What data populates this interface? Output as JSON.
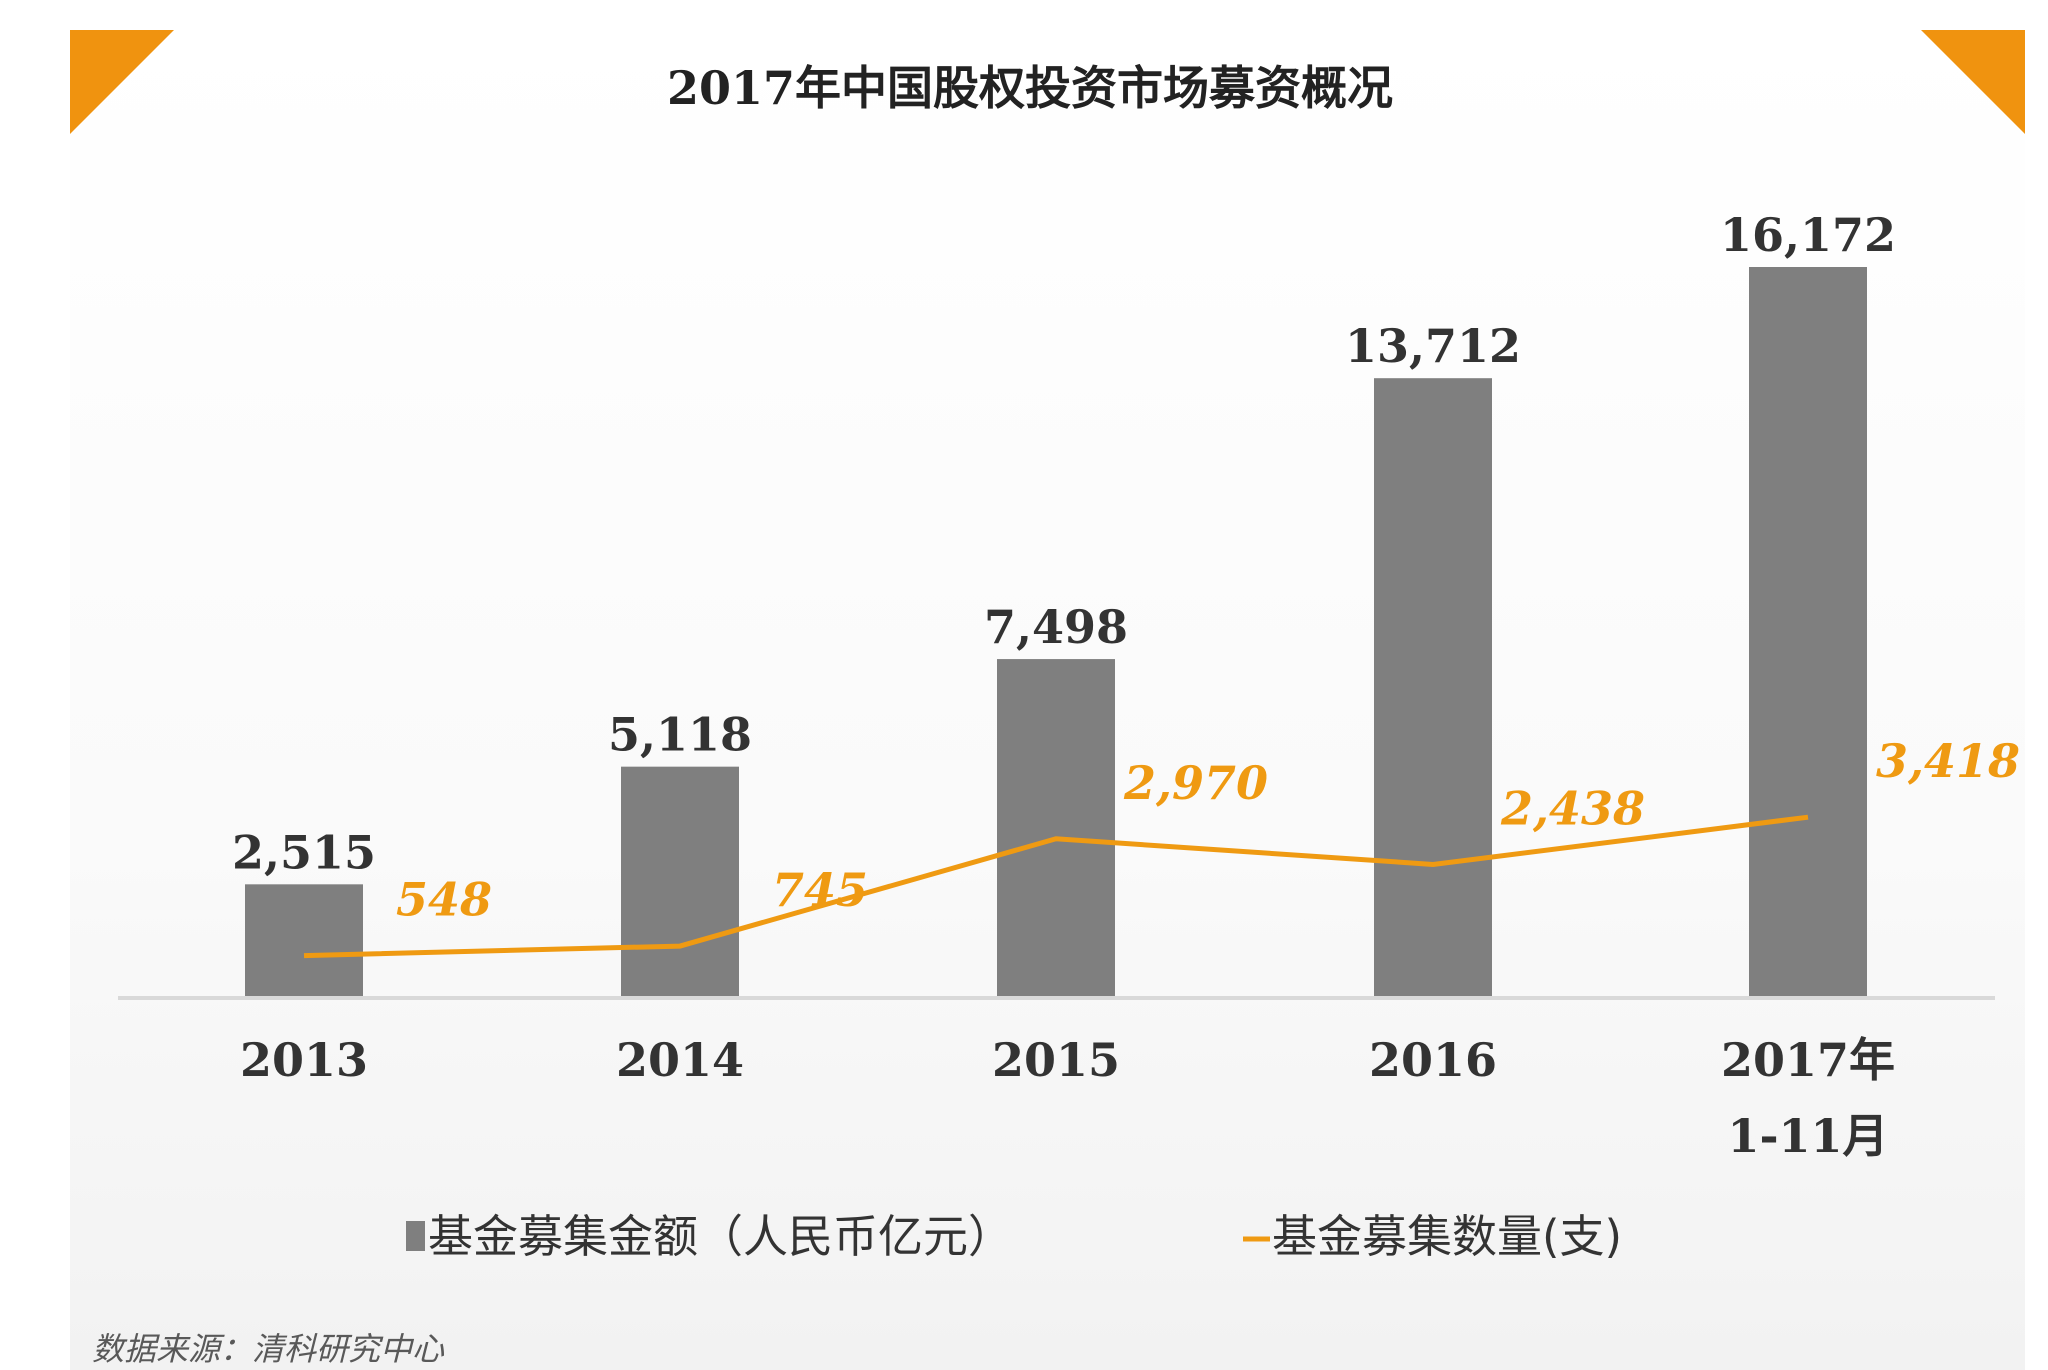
{
  "colors": {
    "bar": "#7f7f7f",
    "line": "#ef9a12",
    "value_text": "#333333",
    "axis": "#d9d9d9",
    "corner": "#f0930f"
  },
  "chart_data": {
    "type": "bar+line",
    "title": "2017年中国股权投资市场募资概况",
    "categories": [
      [
        "2013"
      ],
      [
        "2014"
      ],
      [
        "2015"
      ],
      [
        "2016"
      ],
      [
        "2017年",
        "1-11月"
      ]
    ],
    "series": [
      {
        "name": "基金募集金额（人民币亿元）",
        "type": "bar",
        "values": [
          2515,
          5118,
          7498,
          13712,
          16172
        ],
        "labels": [
          "2,515",
          "5,118",
          "7,498",
          "13,712",
          "16,172"
        ]
      },
      {
        "name": "基金募集数量(支)",
        "type": "line",
        "values": [
          548,
          745,
          2970,
          2438,
          3418
        ],
        "labels": [
          "548",
          "745",
          "2,970",
          "2,438",
          "3,418"
        ]
      }
    ],
    "bar_axis": {
      "min": 0,
      "max": 16172
    },
    "line_axis": {
      "min": 0,
      "max": 18000
    },
    "legend": "bottom",
    "source": "数据来源：清科研究中心"
  }
}
